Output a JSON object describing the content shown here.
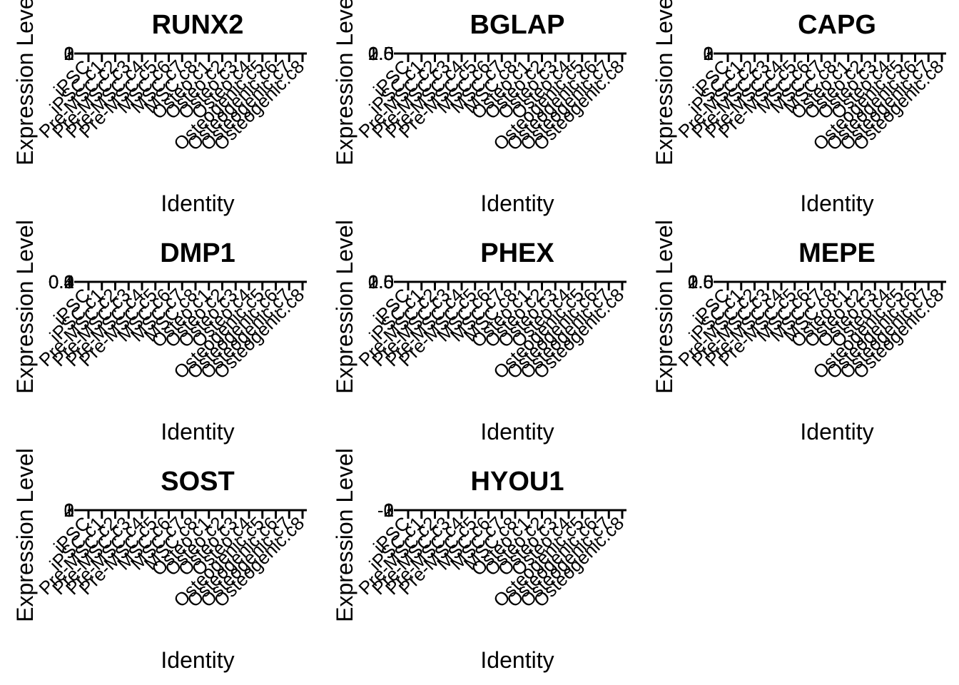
{
  "chart_data": [
    {
      "type": "violin",
      "title": "RUNX2",
      "xlabel": "Identity",
      "ylabel": "Expression Level",
      "y_tick_labels": [
        "0",
        "1",
        "2",
        "3"
      ],
      "categories": [
        "iPSC",
        "iPSC.c1",
        "Pre-MSC.c2",
        "Pre-MSC.c3",
        "Pre-MSC.c4",
        "Pre-MSC.c5",
        "MSC.c6",
        "MSC.c7",
        "MSC.c8",
        "Osteo.c1",
        "Osteo.c2",
        "Osteo.c3",
        "Osteo.c4",
        "Osteogenic.c5",
        "Osteogenic.c6",
        "Osteogenic.c7",
        "Osteogenic.c8"
      ]
    },
    {
      "type": "violin",
      "title": "BGLAP",
      "xlabel": "Identity",
      "ylabel": "Expression Level",
      "y_tick_labels": [
        "0.0",
        "0.5",
        "1.0",
        "1.5",
        "2.0"
      ],
      "categories": [
        "iPSC",
        "iPSC.c1",
        "Pre-MSC.c2",
        "Pre-MSC.c3",
        "Pre-MSC.c4",
        "Pre-MSC.c5",
        "MSC.c6",
        "MSC.c7",
        "MSC.c8",
        "Osteo.c1",
        "Osteo.c2",
        "Osteo.c3",
        "Osteo.c4",
        "Osteogenic.c5",
        "Osteogenic.c6",
        "Osteogenic.c7",
        "Osteogenic.c8"
      ]
    },
    {
      "type": "violin",
      "title": "CAPG",
      "xlabel": "Identity",
      "ylabel": "Expression Level",
      "y_tick_labels": [
        "0",
        "1",
        "2",
        "3"
      ],
      "categories": [
        "iPSC",
        "iPSC.c1",
        "Pre-MSC.c2",
        "Pre-MSC.c3",
        "Pre-MSC.c4",
        "Pre-MSC.c5",
        "MSC.c6",
        "MSC.c7",
        "MSC.c8",
        "Osteo.c1",
        "Osteo.c2",
        "Osteo.c3",
        "Osteo.c4",
        "Osteogenic.c5",
        "Osteogenic.c6",
        "Osteogenic.c7",
        "Osteogenic.c8"
      ]
    },
    {
      "type": "violin",
      "title": "DMP1",
      "xlabel": "Identity",
      "ylabel": "Expression Level",
      "y_tick_labels": [
        "0.0",
        "0.1",
        "0.2",
        "0.3",
        "0.4"
      ],
      "categories": [
        "iPSC",
        "iPSC.c1",
        "Pre-MSC.c2",
        "Pre-MSC.c3",
        "Pre-MSC.c4",
        "Pre-MSC.c5",
        "MSC.c6",
        "MSC.c7",
        "MSC.c8",
        "Osteo.c1",
        "Osteo.c2",
        "Osteo.c3",
        "Osteo.c4",
        "Osteogenic.c5",
        "Osteogenic.c6",
        "Osteogenic.c7",
        "Osteogenic.c8"
      ]
    },
    {
      "type": "violin",
      "title": "PHEX",
      "xlabel": "Identity",
      "ylabel": "Expression Level",
      "y_tick_labels": [
        "0.0",
        "0.5",
        "1.0",
        "1.5",
        "2.0"
      ],
      "categories": [
        "iPSC",
        "iPSC.c1",
        "Pre-MSC.c2",
        "Pre-MSC.c3",
        "Pre-MSC.c4",
        "Pre-MSC.c5",
        "MSC.c6",
        "MSC.c7",
        "MSC.c8",
        "Osteo.c1",
        "Osteo.c2",
        "Osteo.c3",
        "Osteo.c4",
        "Osteogenic.c5",
        "Osteogenic.c6",
        "Osteogenic.c7",
        "Osteogenic.c8"
      ]
    },
    {
      "type": "violin",
      "title": "MEPE",
      "xlabel": "Identity",
      "ylabel": "Expression Level",
      "y_tick_labels": [
        "0.0",
        "0.5",
        "1.0",
        "1.5",
        "2.0"
      ],
      "categories": [
        "iPSC",
        "iPSC.c1",
        "Pre-MSC.c2",
        "Pre-MSC.c3",
        "Pre-MSC.c4",
        "Pre-MSC.c5",
        "MSC.c6",
        "MSC.c7",
        "MSC.c8",
        "Osteo.c1",
        "Osteo.c2",
        "Osteo.c3",
        "Osteo.c4",
        "Osteogenic.c5",
        "Osteogenic.c6",
        "Osteogenic.c7",
        "Osteogenic.c8"
      ]
    },
    {
      "type": "violin",
      "title": "SOST",
      "xlabel": "Identity",
      "ylabel": "Expression Level",
      "y_tick_labels": [
        "0",
        "1",
        "2",
        "3"
      ],
      "categories": [
        "iPSC",
        "iPSC.c1",
        "Pre-MSC.c2",
        "Pre-MSC.c3",
        "Pre-MSC.c4",
        "Pre-MSC.c5",
        "MSC.c6",
        "MSC.c7",
        "MSC.c8",
        "Osteo.c1",
        "Osteo.c2",
        "Osteo.c3",
        "Osteo.c4",
        "Osteogenic.c5",
        "Osteogenic.c6",
        "Osteogenic.c7",
        "Osteogenic.c8"
      ]
    },
    {
      "type": "violin",
      "title": "HYOU1",
      "xlabel": "Identity",
      "ylabel": "Expression Level",
      "y_tick_labels": [
        "-1",
        "0",
        "1",
        "2",
        "3"
      ],
      "categories": [
        "iPSC",
        "iPSC.c1",
        "Pre-MSC.c2",
        "Pre-MSC.c3",
        "Pre-MSC.c4",
        "Pre-MSC.c5",
        "MSC.c6",
        "MSC.c7",
        "MSC.c8",
        "Osteo.c1",
        "Osteo.c2",
        "Osteo.c3",
        "Osteo.c4",
        "Osteogenic.c5",
        "Osteogenic.c6",
        "Osteogenic.c7",
        "Osteogenic.c8"
      ]
    }
  ]
}
